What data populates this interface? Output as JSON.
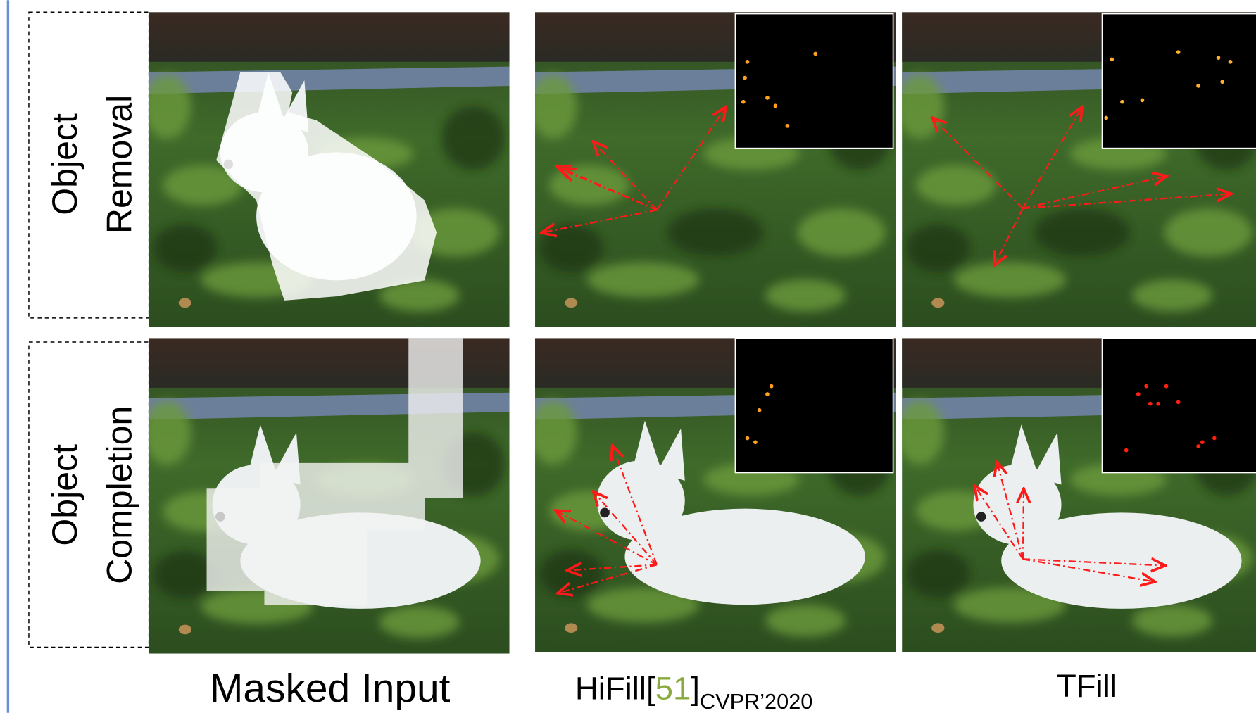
{
  "rows": [
    {
      "line1": "Object",
      "line2": "Removal"
    },
    {
      "line1": "Object",
      "line2": "Completion"
    }
  ],
  "columns": {
    "masked_input": "Masked Input",
    "hifill": {
      "method": "HiFill",
      "ref_open": "[",
      "ref": "51",
      "ref_close": "]",
      "venue": "CVPR’2020"
    },
    "tfill": "TFill"
  }
}
